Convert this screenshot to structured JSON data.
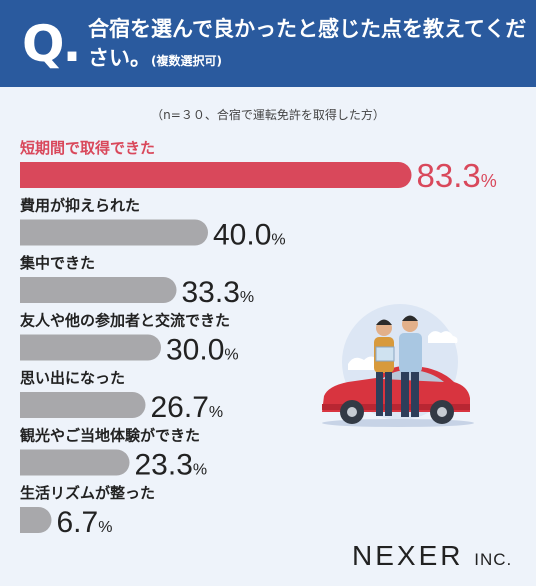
{
  "header": {
    "q_mark": "Q.",
    "question": "合宿を選んで良かったと感じた点を教えてください。",
    "note": "(複数選択可)"
  },
  "sample_note": "（n=３０、合宿で運転免許を取得した方）",
  "logo": {
    "name": "NEXER",
    "suffix": "INC."
  },
  "colors": {
    "highlight": "#d9485b",
    "bar": "#a8a8ab",
    "header": "#2a5a9e"
  },
  "chart_data": {
    "type": "bar",
    "orientation": "horizontal",
    "unit": "%",
    "categories": [
      "短期間で取得できた",
      "費用が抑えられた",
      "集中できた",
      "友人や他の参加者と交流できた",
      "思い出になった",
      "観光やご当地体験ができた",
      "生活リズムが整った"
    ],
    "values": [
      83.3,
      40.0,
      33.3,
      30.0,
      26.7,
      23.3,
      6.7
    ],
    "value_labels": [
      "83.3",
      "40.0",
      "33.3",
      "30.0",
      "26.7",
      "23.3",
      "6.7"
    ],
    "highlight_index": 0,
    "xlim": [
      0,
      100
    ]
  }
}
